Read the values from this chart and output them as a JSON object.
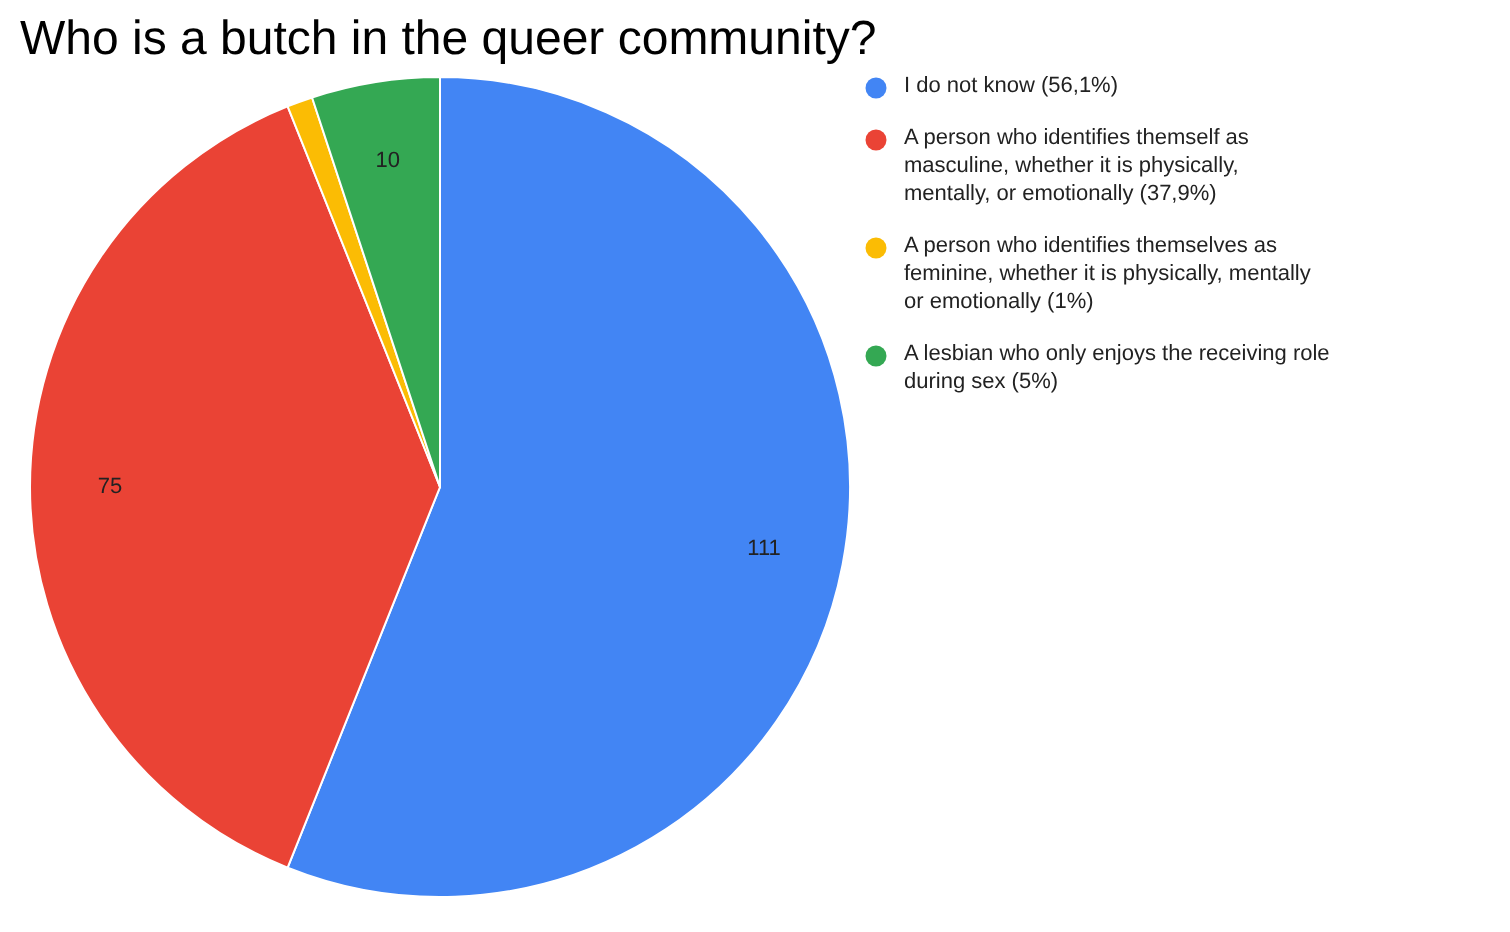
{
  "chart_data": {
    "type": "pie",
    "title": "Who is a butch in the queer community?",
    "categories": [
      "I do not know (56,1%)",
      "A person who identifies themself as masculine, whether it is physically, mentally, or emotionally (37,9%)",
      "A person who identifies themselves as feminine, whether it is physically, mentally or emotionally (1%)",
      "A lesbian who only enjoys the receiving role during sex (5%)"
    ],
    "values": [
      111,
      75,
      2,
      10
    ],
    "colors": [
      "#4285f4",
      "#ea4335",
      "#fbbc04",
      "#34a853"
    ],
    "value_labels": [
      "111",
      "75",
      null,
      "10"
    ],
    "legend": "right"
  }
}
